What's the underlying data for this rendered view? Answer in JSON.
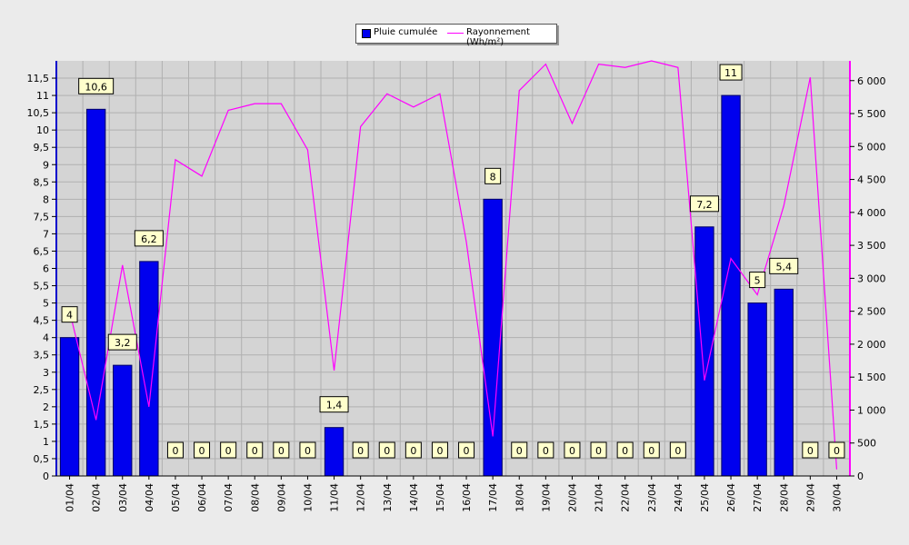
{
  "chart_data": {
    "type": "bar",
    "categories": [
      "01/04",
      "02/04",
      "03/04",
      "04/04",
      "05/04",
      "06/04",
      "07/04",
      "08/04",
      "09/04",
      "10/04",
      "11/04",
      "12/04",
      "13/04",
      "14/04",
      "15/04",
      "16/04",
      "17/04",
      "18/04",
      "19/04",
      "20/04",
      "21/04",
      "22/04",
      "23/04",
      "24/04",
      "25/04",
      "26/04",
      "27/04",
      "28/04",
      "29/04",
      "30/04"
    ],
    "series": [
      {
        "name": "Pluie cumulée",
        "type": "bar",
        "axis": "left",
        "color": "#0000ee",
        "values": [
          4,
          10.6,
          3.2,
          6.2,
          0,
          0,
          0,
          0,
          0,
          0,
          1.4,
          0,
          0,
          0,
          0,
          0,
          8,
          0,
          0,
          0,
          0,
          0,
          0,
          0,
          7.2,
          11,
          5,
          5.4,
          0,
          0
        ],
        "data_labels": [
          "4",
          "10,6",
          "3,2",
          "6,2",
          "0",
          "0",
          "0",
          "0",
          "0",
          "0",
          "1,4",
          "0",
          "0",
          "0",
          "0",
          "0",
          "8",
          "0",
          "0",
          "0",
          "0",
          "0",
          "0",
          "0",
          "7,2",
          "11",
          "5",
          "5,4",
          "0",
          "0"
        ]
      },
      {
        "name": "Rayonnement (Wh/m²)",
        "type": "line",
        "axis": "right",
        "color": "#ff00ff",
        "values": [
          2500,
          850,
          3200,
          1050,
          4800,
          4550,
          5550,
          5650,
          5650,
          4950,
          1600,
          5300,
          5800,
          5600,
          5800,
          3550,
          600,
          5850,
          6250,
          5350,
          6250,
          6200,
          6300,
          6200,
          1450,
          3300,
          2750,
          4100,
          6050,
          100
        ]
      }
    ],
    "y_left": {
      "ylim": [
        0,
        12
      ],
      "ticks": [
        0,
        0.5,
        1,
        1.5,
        2,
        2.5,
        3,
        3.5,
        4,
        4.5,
        5,
        5.5,
        6,
        6.5,
        7,
        7.5,
        8,
        8.5,
        9,
        9.5,
        10,
        10.5,
        11,
        11.5
      ],
      "tick_labels": [
        "0",
        "0,5",
        "1",
        "1,5",
        "2",
        "2,5",
        "3",
        "3,5",
        "4",
        "4,5",
        "5",
        "5,5",
        "6",
        "6,5",
        "7",
        "7,5",
        "8",
        "8,5",
        "9",
        "9,5",
        "10",
        "10,5",
        "11",
        "11,5"
      ]
    },
    "y_right": {
      "ylim": [
        0,
        6300
      ],
      "ticks": [
        0,
        500,
        1000,
        1500,
        2000,
        2500,
        3000,
        3500,
        4000,
        4500,
        5000,
        5500,
        6000
      ],
      "tick_labels": [
        "0",
        "500",
        "1 000",
        "1 500",
        "2 000",
        "2 500",
        "3 000",
        "3 500",
        "4 000",
        "4 500",
        "5 000",
        "5 500",
        "6 000"
      ]
    },
    "grid": true,
    "legend_position": "top-center",
    "colors": {
      "background": "#ebebeb",
      "plot_background": "#d4d4d4",
      "grid": "#b0b0b0",
      "left_axis": "#0000cc",
      "right_axis": "#ff00ff",
      "label_box": "#ffffcc"
    }
  }
}
